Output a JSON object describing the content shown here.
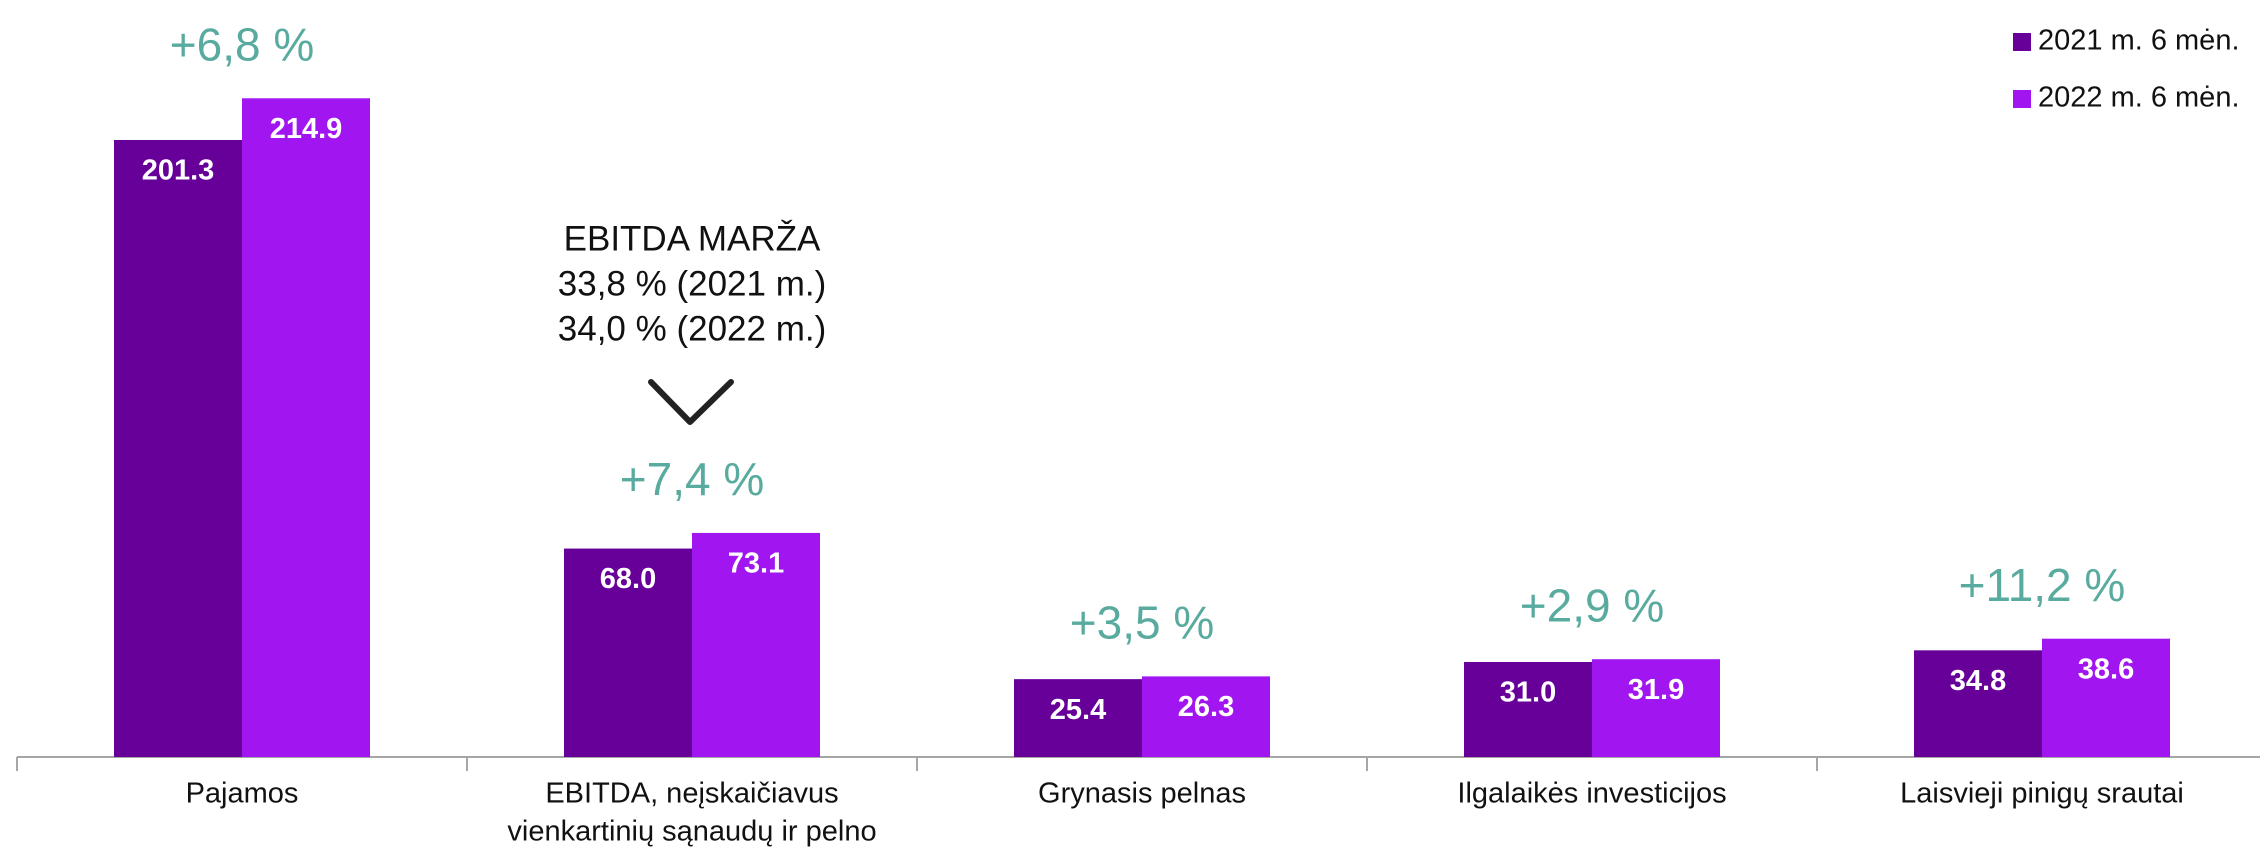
{
  "chart_data": {
    "type": "bar",
    "categories": [
      [
        "Pajamos"
      ],
      [
        "EBITDA, neįskaičiavus",
        "vienkartinių sąnaudų ir pelno"
      ],
      [
        "Grynasis pelnas"
      ],
      [
        "Ilgalaikės investicijos"
      ],
      [
        "Laisvieji pinigų srautai"
      ]
    ],
    "series": [
      {
        "name": "2021 m. 6 mėn.",
        "color": "#660099",
        "values": [
          201.3,
          68.0,
          25.4,
          31.0,
          34.8
        ],
        "value_labels": [
          "201.3",
          "68.0",
          "25.4",
          "31.0",
          "34.8"
        ]
      },
      {
        "name": "2022 m. 6 mėn.",
        "color": "#a116f0",
        "values": [
          214.9,
          73.1,
          26.3,
          31.9,
          38.6
        ],
        "value_labels": [
          "214.9",
          "73.1",
          "26.3",
          "31.9",
          "38.6"
        ]
      }
    ],
    "annotations": [
      "+6,8 %",
      "+7,4 %",
      "+3,5 %",
      "+2,9 %",
      "+11,2 %"
    ],
    "annotation_color": "#5aab9f",
    "margin_note": [
      "EBITDA MARŽA",
      "33,8 % (2021 m.)",
      "34,0 % (2022 m.)"
    ],
    "ylim": [
      0,
      230
    ],
    "legend": "top-right"
  }
}
